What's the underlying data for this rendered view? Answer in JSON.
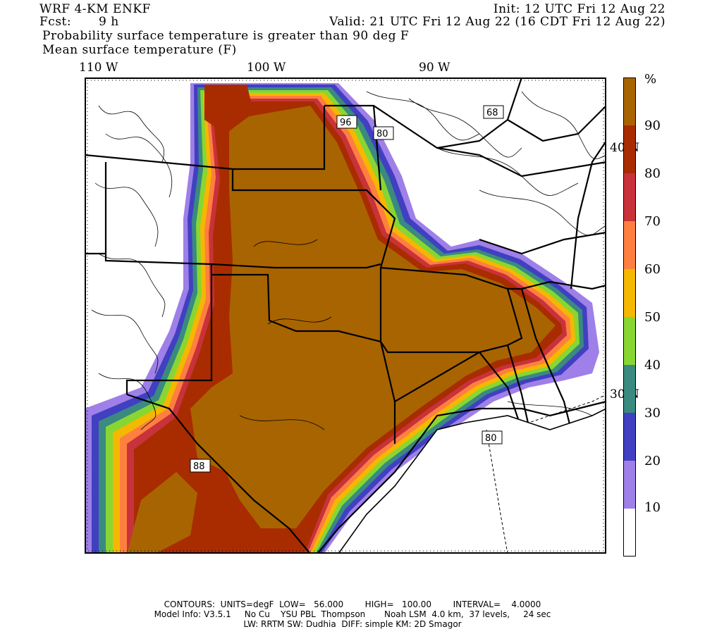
{
  "header": {
    "model": "WRF 4-KM ENKF",
    "fcst_label": "Fcst:",
    "fcst_value": "9 h",
    "init": "Init: 12 UTC Fri 12 Aug 22",
    "valid": "Valid: 21 UTC Fri 12 Aug 22 (16 CDT Fri 12 Aug 22)",
    "field1": "Probability surface temperature is greater than 90 deg F",
    "field2": "Mean surface temperature (F)"
  },
  "longitude_labels": [
    "110 W",
    "100 W",
    "90 W"
  ],
  "latitude_labels": [
    "40 N",
    "30 N"
  ],
  "highway_labels": [
    "96",
    "80",
    "68",
    "88",
    "80"
  ],
  "colorbar": {
    "unit": "%",
    "levels": [
      "90",
      "80",
      "70",
      "60",
      "50",
      "40",
      "30",
      "20",
      "10"
    ],
    "colors": [
      "#ffffff",
      "#9f7fe8",
      "#4040c0",
      "#3a8a80",
      "#88d632",
      "#f5b800",
      "#ff7f40",
      "#c8323a",
      "#a82c00",
      "#a86400"
    ]
  },
  "footer": {
    "line1": "CONTOURS:  UNITS=degF  LOW=   56.000        HIGH=   100.00        INTERVAL=    4.0000",
    "line2": "Model Info: V3.5.1     No Cu    YSU PBL  Thompson       Noah LSM  4.0 km,  37 levels,     24 sec",
    "line3": "LW: RRTM SW: Dudhia  DIFF: simple KM: 2D Smagor"
  }
}
